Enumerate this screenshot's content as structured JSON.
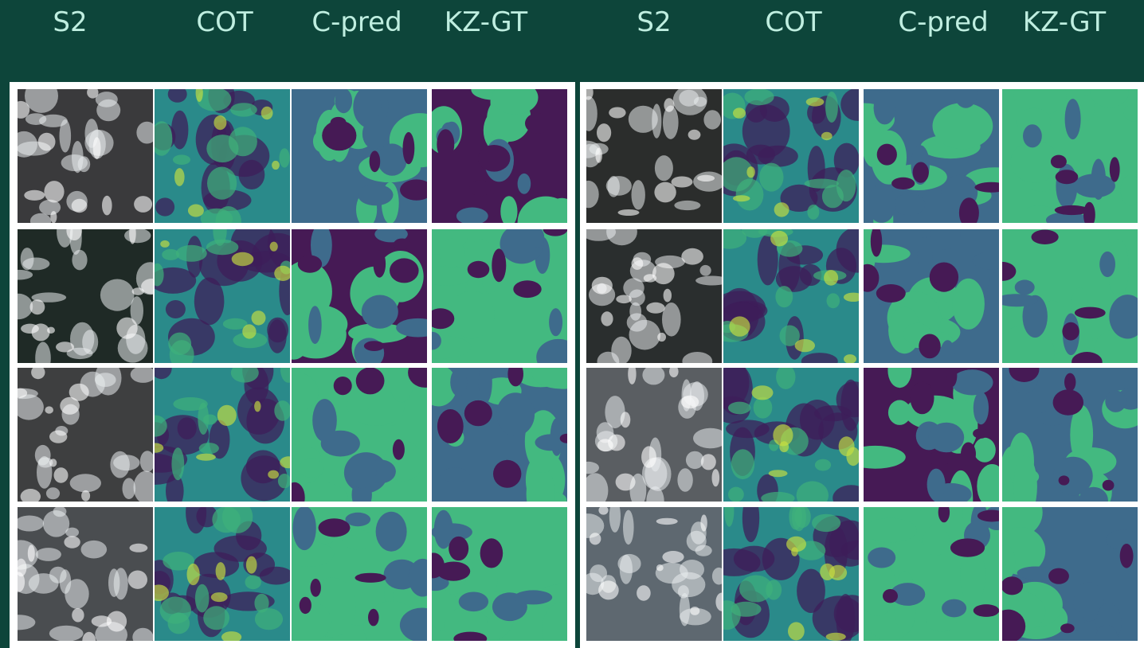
{
  "columns": {
    "left": [
      "S2",
      "COT",
      "C-pred",
      "KZ-GT"
    ],
    "right": [
      "S2",
      "COT",
      "C-pred",
      "KZ-GT"
    ]
  },
  "grid": {
    "rows": 4,
    "cols_per_panel": 4
  },
  "colors": {
    "background": "#0d453a",
    "header_text": "#bfeee0",
    "class_clear": "#3e6b8c",
    "class_cloud": "#43b980",
    "class_shadow": "#461a55",
    "cot_low": "#3d1d5a",
    "cot_mid": "#2a8a8a",
    "cot_high": "#c9e040"
  }
}
